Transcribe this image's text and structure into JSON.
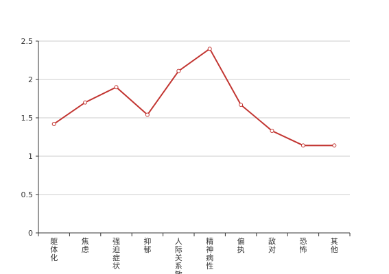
{
  "chart_data": {
    "type": "line",
    "title": "",
    "xlabel": "",
    "ylabel": "",
    "categories": [
      "躯体化",
      "焦虑",
      "强迫症状",
      "抑郁",
      "人际关系敏感",
      "精神病性",
      "偏执",
      "敌对",
      "恐怖",
      "其他"
    ],
    "series": [
      {
        "values": [
          1.42,
          1.7,
          1.9,
          1.54,
          2.11,
          2.4,
          1.67,
          1.33,
          1.14,
          1.14
        ]
      }
    ],
    "ylim": [
      0,
      2.5
    ],
    "yticks": [
      0,
      0.5,
      1,
      1.5,
      2,
      2.5
    ],
    "ytick_labels": [
      "0",
      "0.5",
      "1",
      "1.5",
      "2",
      "2.5"
    ],
    "grid": true,
    "legend": "none",
    "colors": {
      "line": "#c23531",
      "axis": "#333333",
      "grid": "#cccccc"
    }
  }
}
